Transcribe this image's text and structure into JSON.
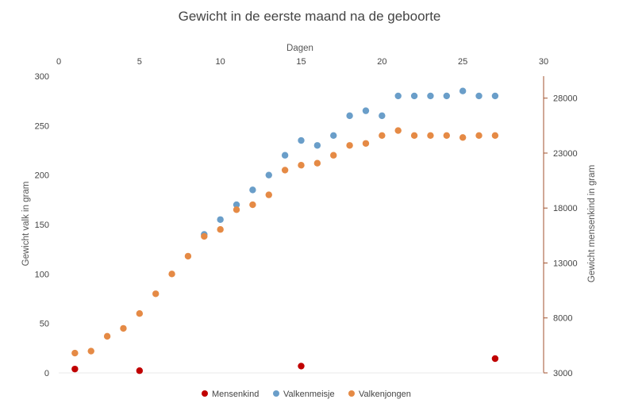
{
  "chart_data": {
    "type": "scatter",
    "title": "Gewicht in de eerste maand na de geboorte",
    "xlabel": "Dagen",
    "ylabel": "Gewicht valk in gram",
    "y2label": "Gewicht mensenkind in gram",
    "xlim": [
      0,
      30
    ],
    "ylim": [
      0,
      300
    ],
    "y2lim": [
      3000,
      30000
    ],
    "x_ticks": [
      "0",
      "5",
      "10",
      "15",
      "20",
      "25",
      "30"
    ],
    "y_ticks": [
      "0",
      "50",
      "100",
      "150",
      "200",
      "250",
      "300"
    ],
    "y2_ticks": [
      "3000",
      "8000",
      "13000",
      "18000",
      "23000",
      "28000"
    ],
    "grid": false,
    "legend_position": "bottom",
    "series": [
      {
        "name": "Mensenkind",
        "axis": "right",
        "color": "#c00000",
        "x": [
          1,
          5,
          15,
          27
        ],
        "y": [
          3350,
          3200,
          3620,
          4300
        ]
      },
      {
        "name": "Valkenmeisje",
        "axis": "left",
        "color": "#6a9ec9",
        "x": [
          9,
          10,
          11,
          12,
          13,
          14,
          15,
          16,
          17,
          18,
          19,
          20,
          21,
          22,
          23,
          24,
          25,
          26,
          27
        ],
        "y": [
          140,
          155,
          170,
          185,
          200,
          220,
          235,
          230,
          240,
          260,
          265,
          260,
          280,
          280,
          280,
          280,
          285,
          280,
          280
        ]
      },
      {
        "name": "Valkenjongen",
        "axis": "left",
        "color": "#e58a45",
        "x": [
          1,
          2,
          3,
          4,
          5,
          6,
          7,
          8,
          9,
          10,
          11,
          12,
          13,
          14,
          15,
          16,
          17,
          18,
          19,
          20,
          21,
          22,
          23,
          24,
          25,
          26,
          27
        ],
        "y": [
          20,
          22,
          37,
          45,
          60,
          80,
          100,
          118,
          138,
          145,
          165,
          170,
          180,
          205,
          210,
          212,
          220,
          230,
          232,
          240,
          245,
          240,
          240,
          240,
          238,
          240,
          240
        ]
      }
    ]
  }
}
